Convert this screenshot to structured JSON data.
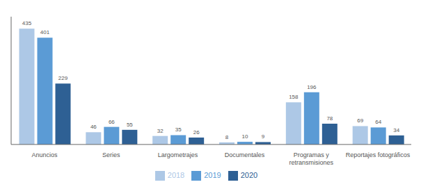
{
  "chart_data": {
    "type": "bar",
    "categories": [
      "Anuncios",
      "Series",
      "Largometrajes",
      "Documentales",
      "Programas y\nretransmisiones",
      "Reportajes fotográficos"
    ],
    "series": [
      {
        "name": "2018",
        "color": "#adc8e6",
        "values": [
          435,
          46,
          32,
          8,
          158,
          69
        ]
      },
      {
        "name": "2019",
        "color": "#5b9bd5",
        "values": [
          401,
          66,
          35,
          10,
          196,
          64
        ]
      },
      {
        "name": "2020",
        "color": "#2e6094",
        "values": [
          229,
          55,
          26,
          9,
          78,
          34
        ]
      }
    ],
    "ylim": [
      0,
      480
    ],
    "grid": false,
    "legend": "bottom",
    "data_labels": true,
    "tick_labels": "x"
  }
}
